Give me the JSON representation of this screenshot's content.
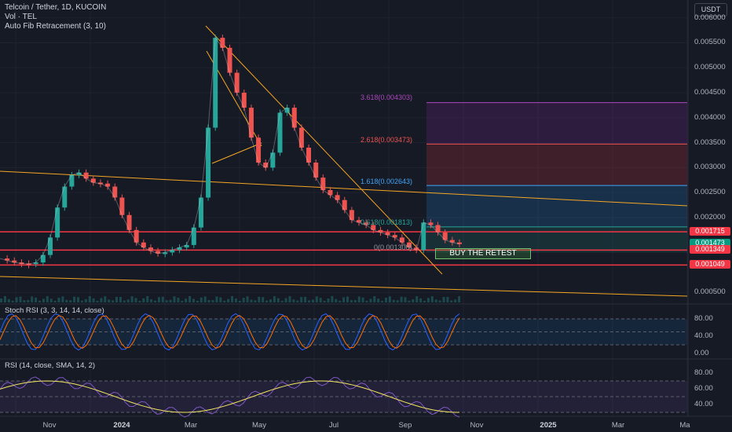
{
  "legend": {
    "symbol": "Telcoin / Tether, 1D, KUCOIN",
    "volume": "Vol · TEL",
    "fib": "Auto Fib Retracement (3, 10)"
  },
  "currency": "USDT",
  "indicators": {
    "stoch_title": "Stoch RSI (3, 3, 14, 14, close)",
    "rsi_title": "RSI (14, close, SMA, 14, 2)"
  },
  "annotation": {
    "retest_label": "BUY THE RETEST"
  },
  "fib_levels": [
    {
      "label": "3.618(0.004303)",
      "color": "#ab47bc"
    },
    {
      "label": "2.618(0.003473)",
      "color": "#ef5350"
    },
    {
      "label": "1.618(0.002643)",
      "color": "#42a5f5"
    },
    {
      "label": "0.618(0.001813)",
      "color": "#26a69a"
    },
    {
      "label": "0(0.001300)",
      "color": "#9598a1"
    }
  ],
  "price_pills": [
    {
      "value": "0.001715",
      "color": "#f23645",
      "price": 0.001715
    },
    {
      "value": "0.001473",
      "color": "#089981",
      "price": 0.001473
    },
    {
      "value": "0.001349",
      "color": "#f23645",
      "price": 0.001349
    },
    {
      "value": "0.001049",
      "color": "#f23645",
      "price": 0.001049
    }
  ],
  "chart_data": {
    "type": "line",
    "title": "Telcoin / Tether, 1D, KUCOIN",
    "price_axis": {
      "ticks": [
        "0.006000",
        "0.005500",
        "0.005000",
        "0.004500",
        "0.004000",
        "0.003500",
        "0.003000",
        "0.002500",
        "0.002000",
        "0.000500"
      ],
      "ylim": [
        0.0003,
        0.0062
      ]
    },
    "time_axis": {
      "ticks": [
        "Nov",
        "2024",
        "Mar",
        "May",
        "Jul",
        "Sep",
        "Nov",
        "2025",
        "Mar",
        "Ma"
      ]
    },
    "series": [
      {
        "values": [
          0.00118,
          0.00114,
          0.0011,
          0.00108,
          0.00107,
          0.0011,
          0.00125,
          0.0016,
          0.0022,
          0.00262,
          0.00285,
          0.0029,
          0.00278,
          0.0027,
          0.00268,
          0.00262,
          0.0024,
          0.00205,
          0.00175,
          0.0015,
          0.0014,
          0.00133,
          0.00128,
          0.0013,
          0.00135,
          0.0014,
          0.00145,
          0.0018,
          0.0024,
          0.0038,
          0.0056,
          0.0054,
          0.0049,
          0.0045,
          0.0042,
          0.0036,
          0.0031,
          0.003,
          0.0033,
          0.0041,
          0.0042,
          0.0038,
          0.0034,
          0.0031,
          0.0028,
          0.00255,
          0.00245,
          0.00235,
          0.00215,
          0.00195,
          0.0019,
          0.00185,
          0.00175,
          0.0017,
          0.00165,
          0.0016,
          0.0015,
          0.0014,
          0.00135,
          0.0019,
          0.00185,
          0.0017,
          0.00155,
          0.0015,
          0.00147
        ]
      }
    ],
    "horizontal_levels": [
      0.001715,
      0.001349,
      0.001049
    ],
    "stoch_rsi": {
      "ticks": [
        "80.00",
        "40.00",
        "0.00"
      ],
      "ylim": [
        0,
        100
      ]
    },
    "rsi": {
      "ticks": [
        "80.00",
        "60.00",
        "40.00"
      ],
      "ylim": [
        30,
        90
      ]
    }
  }
}
